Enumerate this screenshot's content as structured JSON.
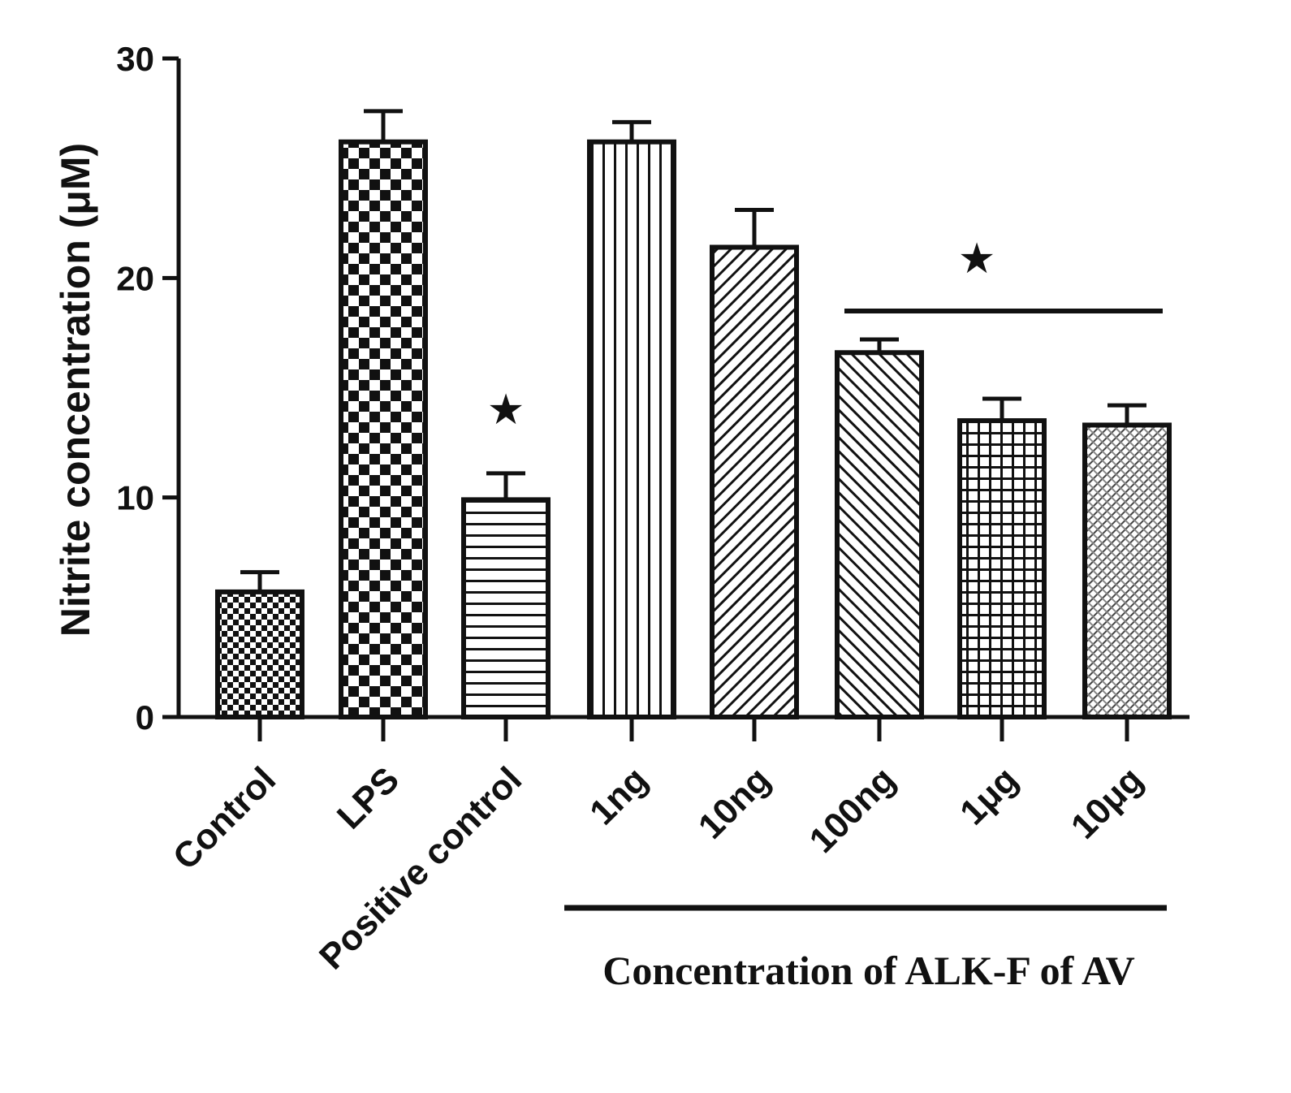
{
  "chart_data": {
    "type": "bar",
    "title": "",
    "xlabel": "",
    "ylabel": "Nitrite concentration (μM)",
    "ylim": [
      0,
      30
    ],
    "yticks": [
      "0",
      "10",
      "20",
      "30"
    ],
    "categories": [
      "Control",
      "LPS",
      "Positive control",
      "1ng",
      "10ng",
      "100ng",
      "1μg",
      "10μg"
    ],
    "values": [
      5.7,
      26.2,
      9.9,
      26.2,
      21.4,
      16.6,
      13.5,
      13.3
    ],
    "error": [
      0.9,
      1.4,
      1.2,
      0.9,
      1.7,
      0.6,
      1.0,
      0.9
    ],
    "patterns": [
      "small-checker",
      "large-checker",
      "horizontal-lines",
      "vertical-lines",
      "diagonal-right",
      "diagonal-left",
      "grid",
      "crosshatch"
    ],
    "group_label": "Concentration of ALK-F of AV",
    "group_members": [
      "1ng",
      "10ng",
      "100ng",
      "1μg",
      "10μg"
    ],
    "significance": [
      {
        "symbol": "★",
        "targets": [
          "Positive control"
        ]
      },
      {
        "symbol": "★",
        "targets": [
          "100ng",
          "1μg",
          "10μg"
        ]
      }
    ],
    "grid": false,
    "legend": "none"
  }
}
